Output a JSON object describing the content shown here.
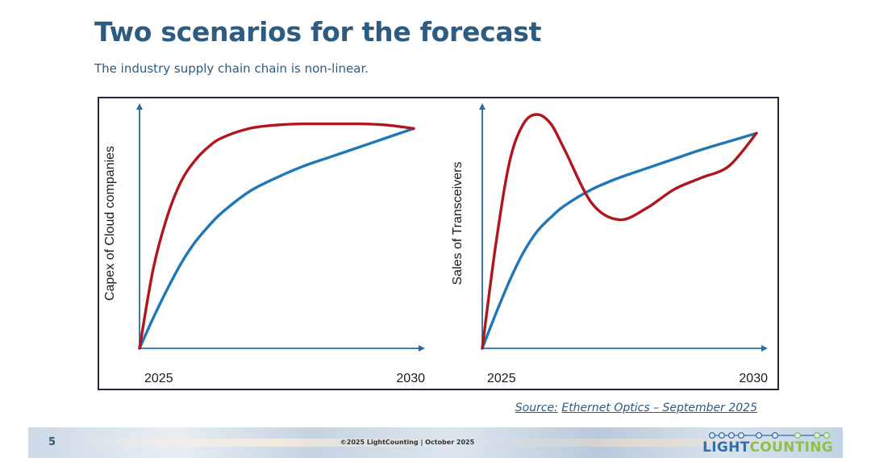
{
  "slide": {
    "title": "Two scenarios for the forecast",
    "subtitle": "The industry supply chain chain is non-linear.",
    "source_label": "Source:",
    "source_text": "Ethernet Optics – September 2025"
  },
  "footer": {
    "page_number": "5",
    "copyright": "©2025 LightCounting | October 2025",
    "logo_part1": "LIGHT",
    "logo_part2": "COUNTING"
  },
  "colors": {
    "title": "#2e5b82",
    "red_series": "#b0161b",
    "blue_series": "#1f77b8",
    "axis": "#2a6aa5",
    "frame": "#1d2b3d",
    "logo_light": "#2e6fb0",
    "logo_counting": "#8fbf4a"
  },
  "chart_data": [
    {
      "type": "line",
      "ylabel": "Capex of Cloud companies",
      "xlabel": "",
      "x_tick_labels": [
        "2025",
        "2030"
      ],
      "xlim": [
        2025,
        2030
      ],
      "ylim": [
        0,
        100
      ],
      "series": [
        {
          "name": "red",
          "color": "#b0161b",
          "x": [
            2025,
            2025.25,
            2025.5,
            2025.75,
            2026,
            2026.25,
            2026.5,
            2027,
            2027.5,
            2028,
            2028.5,
            2029,
            2029.5,
            2030
          ],
          "values": [
            0,
            34,
            56,
            71,
            80,
            86,
            90,
            94,
            95.5,
            96,
            96,
            96,
            95.5,
            94
          ]
        },
        {
          "name": "blue",
          "color": "#1f77b8",
          "x": [
            2025,
            2025.25,
            2025.5,
            2025.75,
            2026,
            2026.25,
            2026.5,
            2027,
            2027.5,
            2028,
            2028.5,
            2029,
            2029.5,
            2030
          ],
          "values": [
            0,
            13,
            25,
            36,
            45,
            52,
            58,
            67,
            73,
            78,
            82,
            86,
            90,
            94
          ]
        }
      ]
    },
    {
      "type": "line",
      "ylabel": "Sales of Transceivers",
      "xlabel": "",
      "x_tick_labels": [
        "2025",
        "2030"
      ],
      "xlim": [
        2025,
        2030
      ],
      "ylim": [
        0,
        100
      ],
      "series": [
        {
          "name": "red",
          "color": "#b0161b",
          "x": [
            2025,
            2025.25,
            2025.5,
            2025.75,
            2026,
            2026.25,
            2026.5,
            2027,
            2027.5,
            2028,
            2028.5,
            2029,
            2029.5,
            2030
          ],
          "values": [
            0,
            45,
            80,
            96,
            100,
            96,
            85,
            62,
            55,
            60,
            68,
            73,
            78,
            92
          ]
        },
        {
          "name": "blue",
          "color": "#1f77b8",
          "x": [
            2025,
            2025.25,
            2025.5,
            2025.75,
            2026,
            2026.25,
            2026.5,
            2027,
            2027.5,
            2028,
            2028.5,
            2029,
            2029.5,
            2030
          ],
          "values": [
            0,
            15,
            29,
            41,
            50,
            56,
            61,
            68,
            73,
            77,
            81,
            85,
            88.5,
            92
          ]
        }
      ]
    }
  ]
}
